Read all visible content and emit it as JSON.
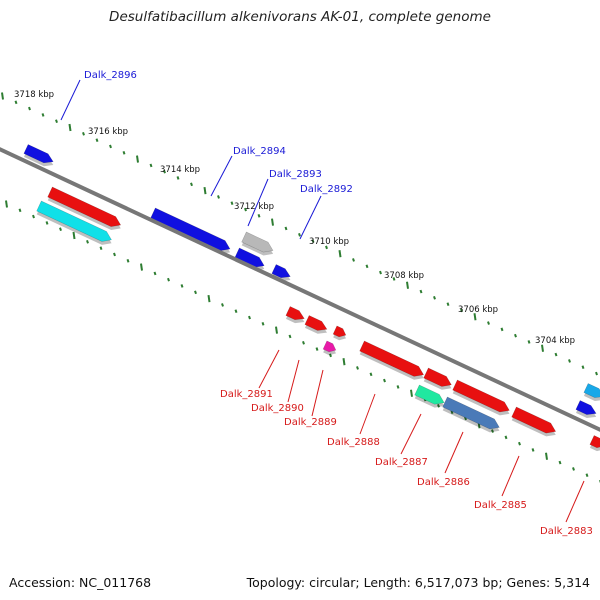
{
  "title": "Desulfatibacillum alkenivorans AK-01, complete genome",
  "footer": {
    "accession": "Accession: NC_011768",
    "topology": "Topology: circular; Length: 6,517,073 bp; Genes: 5,314"
  },
  "colors": {
    "backbone": "#777777",
    "tick": "#2e7d32",
    "forward_label": "#1a1ad6",
    "reverse_label": "#d61a1a",
    "blue": "#1010e0",
    "red": "#e81010",
    "cyan": "#10e0e8",
    "grey": "#b8b8b8",
    "magenta": "#e81aa8",
    "green": "#20e8a0",
    "steel": "#4a7ab8",
    "sky": "#18a8e8"
  },
  "scale_kbp": [
    "3718 kbp",
    "3716 kbp",
    "3714 kbp",
    "3712 kbp",
    "3710 kbp",
    "3708 kbp",
    "3706 kbp",
    "3704 kbp"
  ],
  "forward_genes": [
    "Dalk_2896",
    "Dalk_2894",
    "Dalk_2893",
    "Dalk_2892"
  ],
  "reverse_genes": [
    "Dalk_2891",
    "Dalk_2890",
    "Dalk_2889",
    "Dalk_2888",
    "Dalk_2887",
    "Dalk_2886",
    "Dalk_2885",
    "Dalk_2883"
  ]
}
